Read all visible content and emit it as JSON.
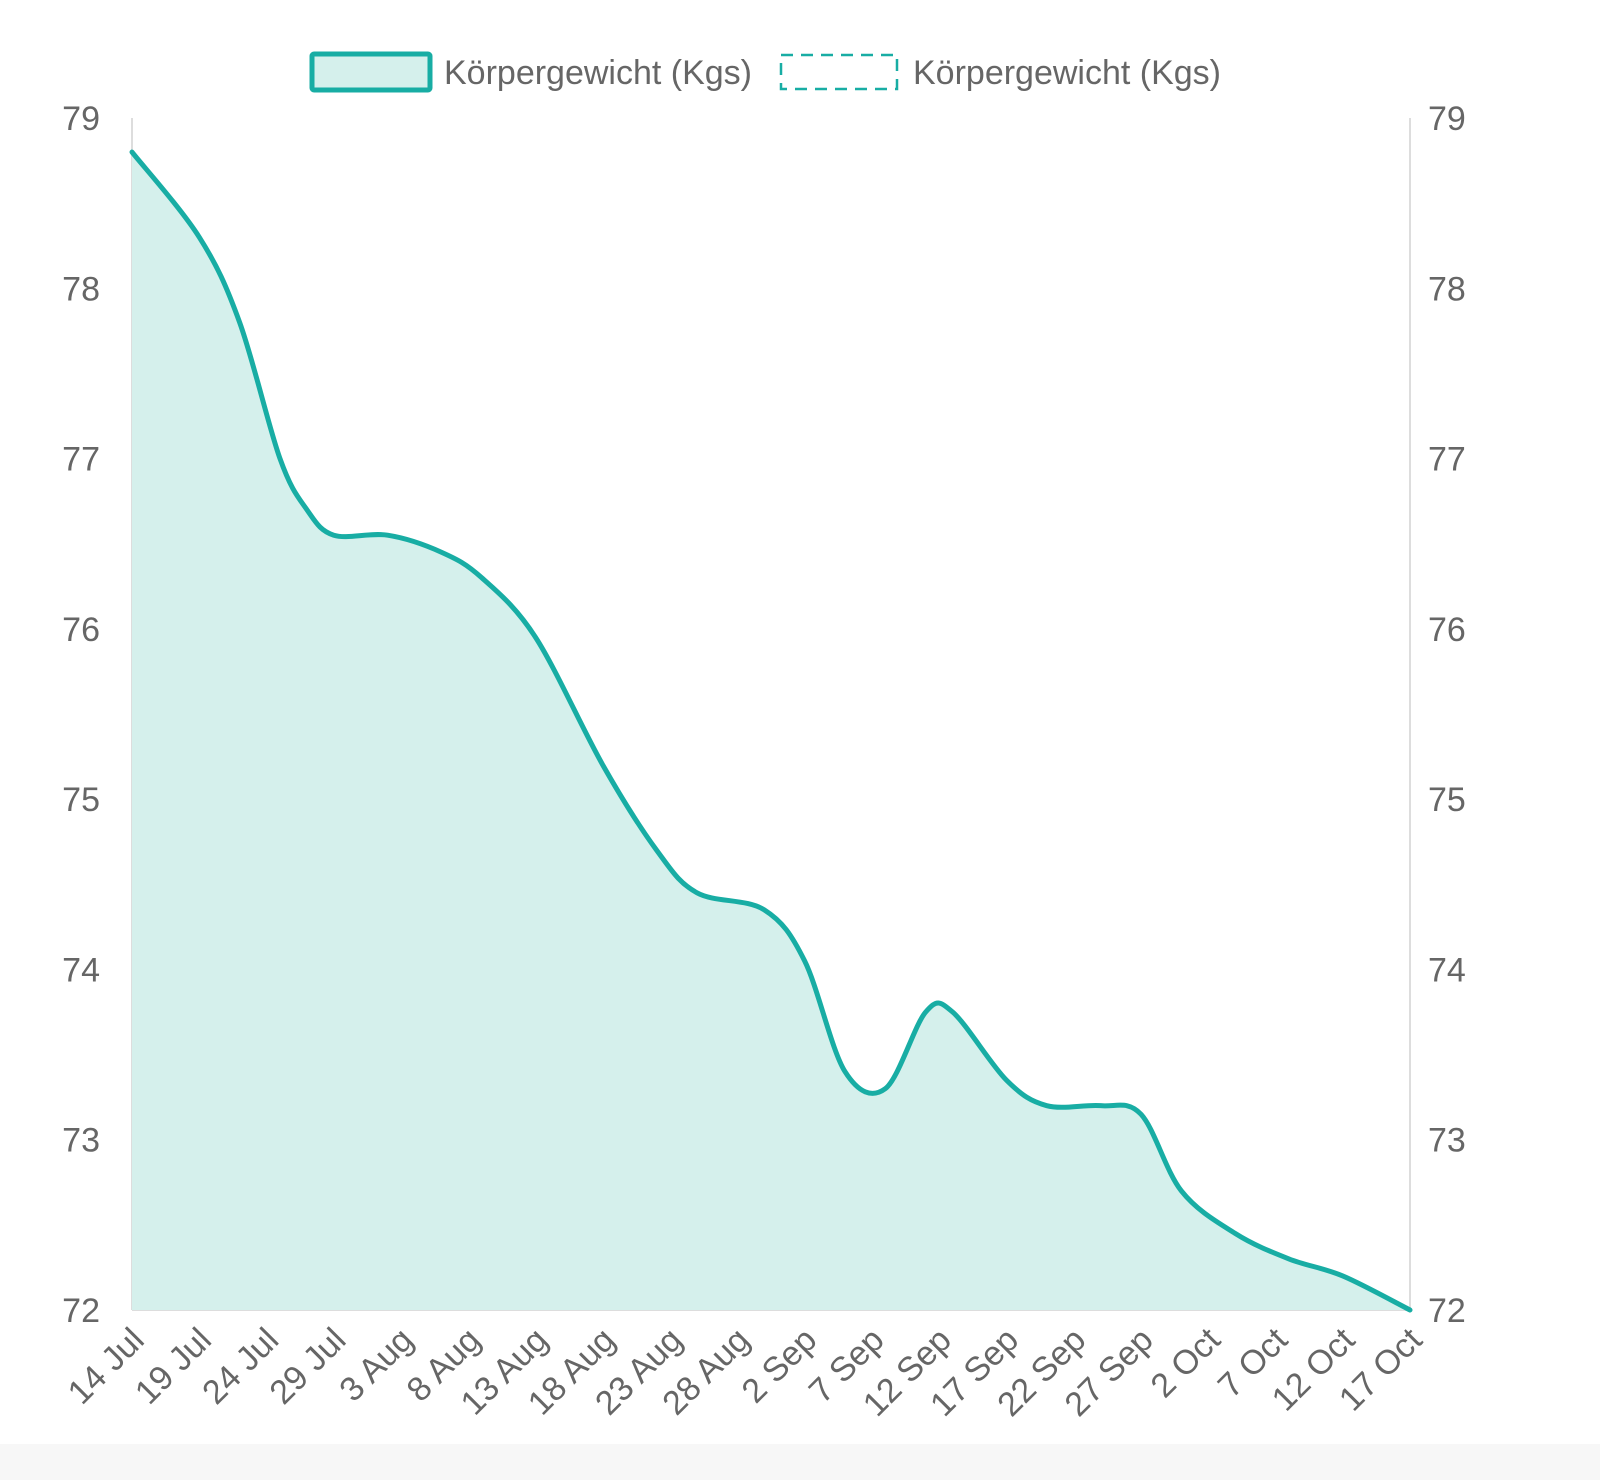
{
  "chart_data": {
    "type": "area",
    "title": "",
    "xlabel": "",
    "ylabel": "",
    "legend": {
      "placement": "top",
      "entries": [
        {
          "label": "Körpergewicht (Kgs)",
          "style": "filled"
        },
        {
          "label": "Körpergewicht (Kgs)",
          "style": "dashed"
        }
      ]
    },
    "x_ticks": [
      "14 Jul",
      "19 Jul",
      "24 Jul",
      "29 Jul",
      "3 Aug",
      "8 Aug",
      "13 Aug",
      "18 Aug",
      "23 Aug",
      "28 Aug",
      "2 Sep",
      "7 Sep",
      "12 Sep",
      "17 Sep",
      "22 Sep",
      "27 Sep",
      "2 Oct",
      "7 Oct",
      "12 Oct",
      "17 Oct"
    ],
    "ylim": [
      72,
      79
    ],
    "y_ticks": [
      "72",
      "73",
      "74",
      "75",
      "76",
      "77",
      "78",
      "79"
    ],
    "y_axis_right": true,
    "grid": false,
    "series": [
      {
        "label": "Körpergewicht (Kgs)",
        "points": [
          {
            "x": "14 Jul",
            "y": 78.8
          },
          {
            "x": "19 Jul",
            "y": 78.3
          },
          {
            "x": "22 Jul",
            "y": 77.8
          },
          {
            "x": "25 Jul",
            "y": 77.0
          },
          {
            "x": "27 Jul",
            "y": 76.7
          },
          {
            "x": "29 Jul",
            "y": 76.55
          },
          {
            "x": "2 Aug",
            "y": 76.55
          },
          {
            "x": "6 Aug",
            "y": 76.45
          },
          {
            "x": "9 Aug",
            "y": 76.3
          },
          {
            "x": "13 Aug",
            "y": 75.95
          },
          {
            "x": "18 Aug",
            "y": 75.2
          },
          {
            "x": "22 Aug",
            "y": 74.7
          },
          {
            "x": "25 Aug",
            "y": 74.45
          },
          {
            "x": "30 Aug",
            "y": 74.35
          },
          {
            "x": "2 Sep",
            "y": 74.05
          },
          {
            "x": "5 Sep",
            "y": 73.4
          },
          {
            "x": "8 Sep",
            "y": 73.3
          },
          {
            "x": "11 Sep",
            "y": 73.75
          },
          {
            "x": "13 Sep",
            "y": 73.75
          },
          {
            "x": "17 Sep",
            "y": 73.35
          },
          {
            "x": "20 Sep",
            "y": 73.2
          },
          {
            "x": "24 Sep",
            "y": 73.2
          },
          {
            "x": "27 Sep",
            "y": 73.15
          },
          {
            "x": "30 Sep",
            "y": 72.7
          },
          {
            "x": "4 Oct",
            "y": 72.45
          },
          {
            "x": "8 Oct",
            "y": 72.3
          },
          {
            "x": "12 Oct",
            "y": 72.2
          },
          {
            "x": "17 Oct",
            "y": 72.0
          }
        ]
      }
    ],
    "colors": {
      "line": "#18ada4",
      "fill": "#d5f0ec",
      "axis": "#dddddd",
      "text": "#666666"
    }
  }
}
